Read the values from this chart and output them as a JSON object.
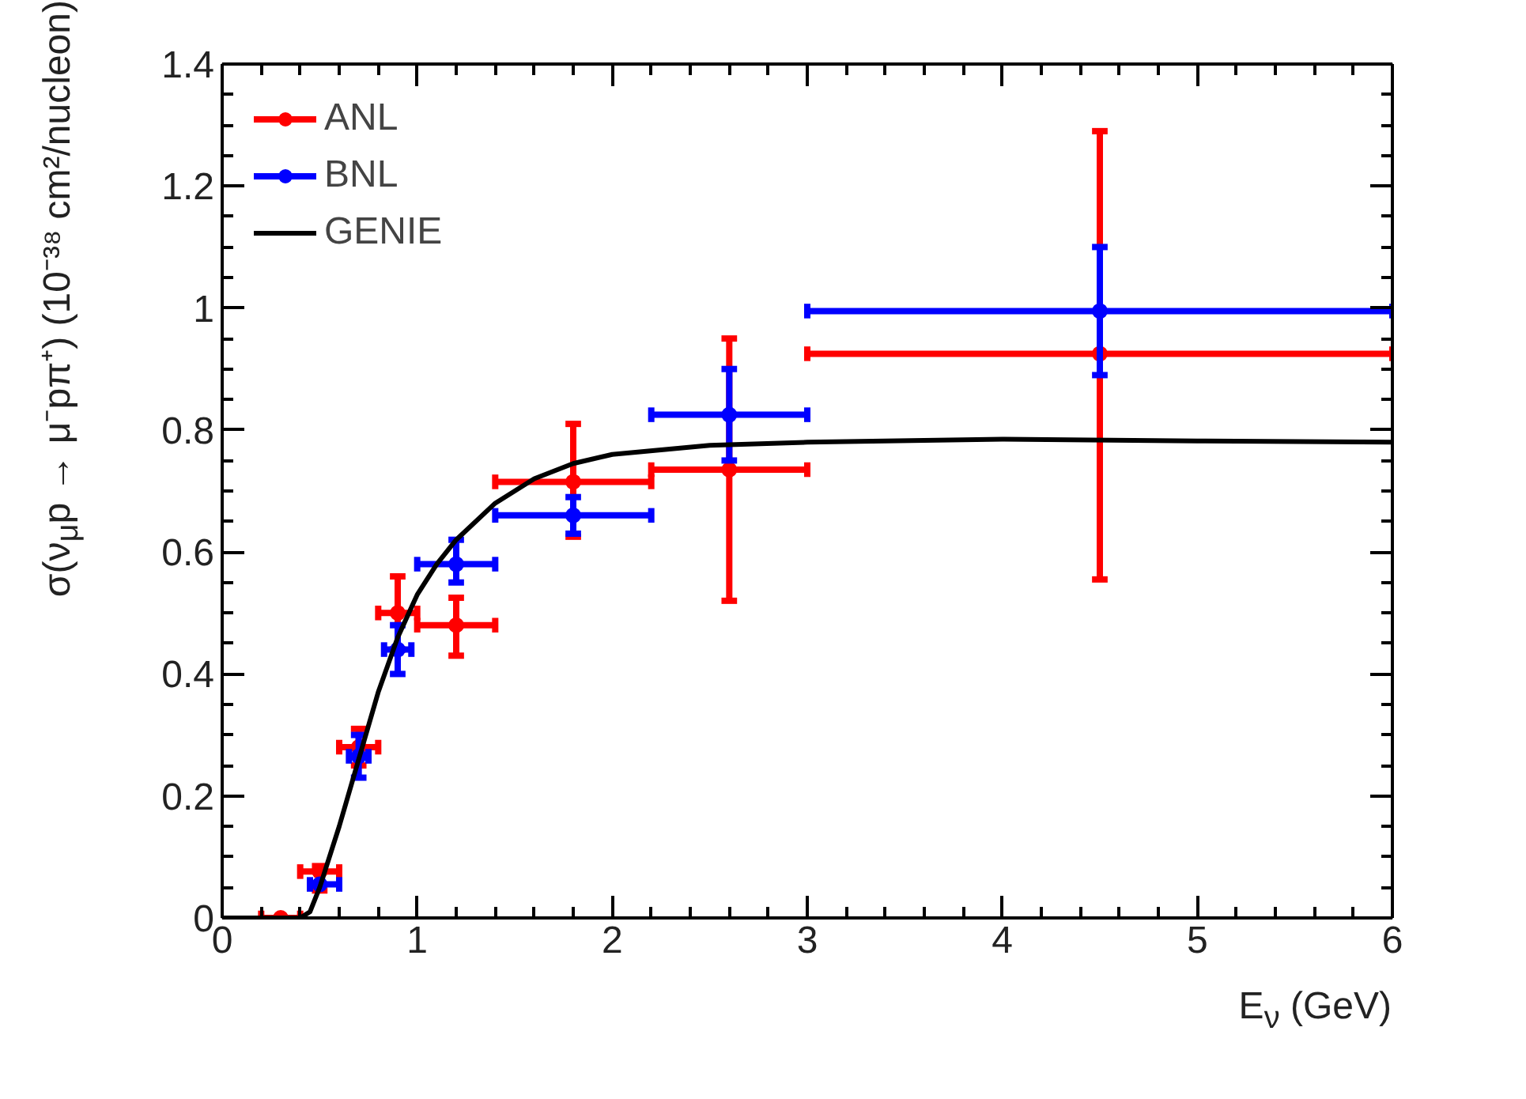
{
  "chart_data": {
    "type": "scatter",
    "xlabel": "E$_{ν}$ (GeV)",
    "ylabel": "σ(ν$_{μ}$p → μ⁻pπ⁺) (10⁻³⁸ cm²/nucleon)",
    "xlim": [
      0,
      6
    ],
    "xticks": [
      0,
      1,
      2,
      3,
      4,
      5,
      6
    ],
    "ylim": [
      0,
      1.4
    ],
    "yticks": [
      0,
      {
        "value": 0.2,
        "label": "0.2"
      },
      {
        "value": 0.4,
        "label": "0.4"
      },
      {
        "value": 0.6,
        "label": "0.6"
      },
      {
        "value": 0.8,
        "label": "0.8"
      },
      1,
      {
        "value": 1.2,
        "label": "1.2"
      },
      {
        "value": 1.4,
        "label": "1.4"
      }
    ],
    "grid": false,
    "legend": "top left",
    "series": [
      {
        "name": "ANL",
        "color": "#ff0000",
        "marker": "circle",
        "x": [
          0.3,
          0.5,
          0.7,
          0.9,
          1.2,
          1.8,
          2.6,
          4.5
        ],
        "values": [
          0.0,
          0.076,
          0.28,
          0.5,
          0.48,
          0.715,
          0.735,
          0.925
        ],
        "errors": [
          null,
          [
            0.045,
            0.085
          ],
          [
            0.25,
            0.31
          ],
          [
            0.44,
            0.56
          ],
          [
            0.43,
            0.525
          ],
          [
            0.625,
            0.81
          ],
          [
            0.52,
            0.95
          ],
          [
            0.555,
            1.29
          ]
        ],
        "xerrors": [
          [
            0.2,
            0.4
          ],
          [
            0.4,
            0.6
          ],
          [
            0.6,
            0.8
          ],
          [
            0.8,
            1.0
          ],
          [
            1.0,
            1.4
          ],
          [
            1.4,
            2.2
          ],
          [
            2.2,
            3.0
          ],
          [
            3.0,
            6.0
          ]
        ]
      },
      {
        "name": "BNL",
        "color": "#0000ff",
        "marker": "circle",
        "x": [
          0.5,
          0.7,
          0.9,
          1.2,
          1.8,
          2.6,
          4.5
        ],
        "values": [
          0.055,
          0.265,
          0.44,
          0.58,
          0.66,
          0.825,
          0.995
        ],
        "errors": [
          null,
          [
            0.23,
            0.3
          ],
          [
            0.4,
            0.48
          ],
          [
            0.55,
            0.62
          ],
          [
            0.63,
            0.69
          ],
          [
            0.75,
            0.9
          ],
          [
            0.89,
            1.1
          ]
        ],
        "xerrors": [
          [
            0.45,
            0.6
          ],
          [
            0.65,
            0.75
          ],
          [
            0.83,
            0.97
          ],
          [
            1.0,
            1.4
          ],
          [
            1.4,
            2.2
          ],
          [
            2.2,
            3.0
          ],
          [
            3.0,
            6.0
          ]
        ]
      },
      {
        "name": "GENIE",
        "type": "line",
        "color": "#000000",
        "line_style": "solid",
        "x": [
          0,
          0.4,
          0.45,
          0.5,
          0.6,
          0.7,
          0.8,
          0.9,
          1.0,
          1.1,
          1.2,
          1.4,
          1.6,
          1.8,
          2.0,
          2.5,
          3.0,
          4.0,
          5.0,
          6.0
        ],
        "values": [
          0,
          0,
          0.01,
          0.05,
          0.15,
          0.26,
          0.37,
          0.46,
          0.53,
          0.58,
          0.62,
          0.68,
          0.72,
          0.745,
          0.76,
          0.775,
          0.78,
          0.785,
          0.782,
          0.78
        ]
      }
    ]
  }
}
